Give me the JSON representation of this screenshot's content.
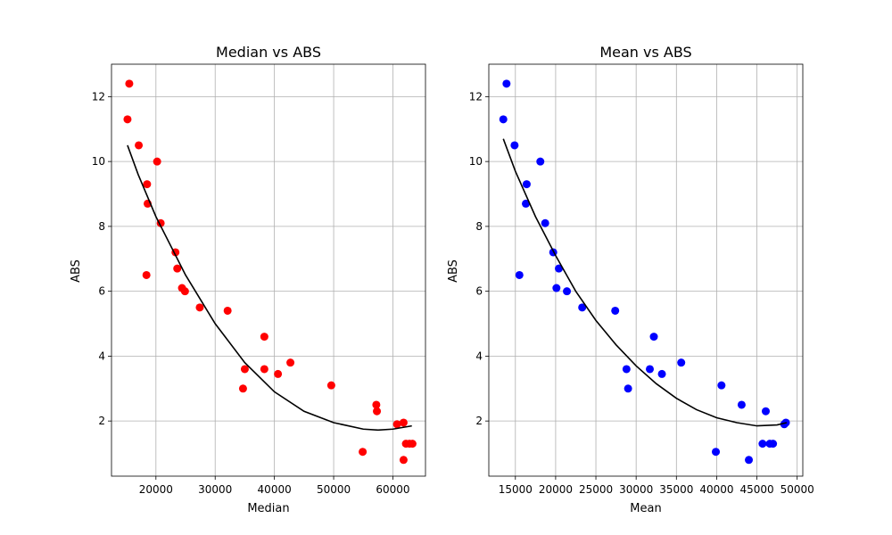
{
  "chart_data": [
    {
      "type": "scatter",
      "title": "Median vs ABS",
      "xlabel": "Median",
      "ylabel": "ABS",
      "xlim": [
        12500,
        65500
      ],
      "ylim": [
        0.3,
        13.0
      ],
      "xticks": [
        20000,
        30000,
        40000,
        50000,
        60000
      ],
      "yticks": [
        2,
        4,
        6,
        8,
        10,
        12
      ],
      "grid": true,
      "point_color": "#ff0000",
      "fit_color": "#000000",
      "points": {
        "x": [
          15500,
          15200,
          17100,
          20200,
          18500,
          18600,
          18400,
          20800,
          23300,
          23600,
          24400,
          24900,
          27400,
          32100,
          38300,
          38300,
          35000,
          34700,
          40600,
          42700,
          49600,
          54900,
          57200,
          57300,
          60700,
          61800,
          62200,
          62800,
          63300,
          61800
        ],
        "y": [
          12.4,
          11.3,
          10.5,
          10.0,
          9.3,
          8.7,
          6.5,
          8.1,
          7.2,
          6.7,
          6.1,
          6.0,
          5.5,
          5.4,
          4.6,
          3.6,
          3.6,
          3.0,
          3.45,
          3.8,
          3.1,
          1.05,
          2.5,
          2.3,
          1.9,
          1.95,
          1.3,
          1.3,
          1.3,
          0.8
        ]
      },
      "fit": {
        "x": [
          15200,
          17000,
          20000,
          25000,
          30000,
          35000,
          40000,
          45000,
          50000,
          55000,
          57500,
          60000,
          63200
        ],
        "y": [
          10.5,
          9.6,
          8.3,
          6.5,
          5.0,
          3.8,
          2.9,
          2.3,
          1.95,
          1.75,
          1.72,
          1.75,
          1.85
        ]
      }
    },
    {
      "type": "scatter",
      "title": "Mean vs ABS",
      "xlabel": "Mean",
      "ylabel": "ABS",
      "xlim": [
        11700,
        50700
      ],
      "ylim": [
        0.3,
        13.0
      ],
      "xticks": [
        15000,
        20000,
        25000,
        30000,
        35000,
        40000,
        45000,
        50000
      ],
      "xtick_labels": [
        "15000",
        "20000",
        "25000",
        "30000",
        "35000",
        "40000",
        "45000",
        "50000"
      ],
      "yticks": [
        2,
        4,
        6,
        8,
        10,
        12
      ],
      "grid": true,
      "point_color": "#0000ff",
      "fit_color": "#000000",
      "points": {
        "x": [
          13900,
          13500,
          14900,
          18100,
          16400,
          16300,
          15500,
          18700,
          19700,
          20400,
          20100,
          21400,
          23300,
          27400,
          32200,
          31700,
          28800,
          29000,
          33200,
          35600,
          40600,
          39900,
          43100,
          46100,
          45700,
          46600,
          48400,
          48600,
          44000,
          47000
        ],
        "y": [
          12.4,
          11.3,
          10.5,
          10.0,
          9.3,
          8.7,
          6.5,
          8.1,
          7.2,
          6.7,
          6.1,
          6.0,
          5.5,
          5.4,
          4.6,
          3.6,
          3.6,
          3.0,
          3.45,
          3.8,
          3.1,
          1.05,
          2.5,
          2.3,
          1.3,
          1.3,
          1.9,
          1.95,
          0.8,
          1.3
        ]
      },
      "fit": {
        "x": [
          13500,
          15000,
          17500,
          20000,
          22500,
          25000,
          27500,
          30000,
          32500,
          35000,
          37500,
          40000,
          42500,
          45000,
          47500,
          48700
        ],
        "y": [
          10.7,
          9.7,
          8.3,
          7.1,
          6.0,
          5.1,
          4.35,
          3.7,
          3.15,
          2.7,
          2.35,
          2.1,
          1.95,
          1.85,
          1.88,
          1.95
        ]
      }
    }
  ]
}
